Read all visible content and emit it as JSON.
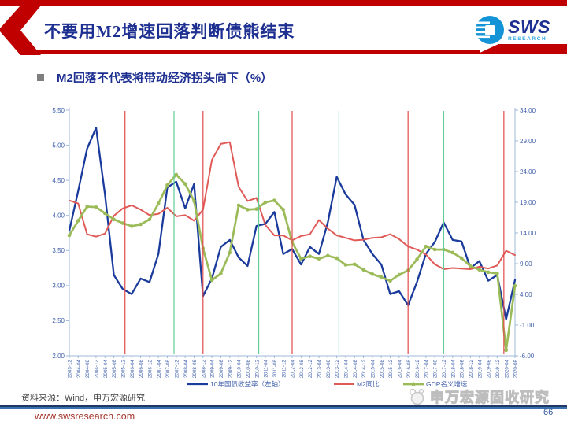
{
  "header": {
    "title": "不要用M2增速回落判断债熊结束",
    "logo": {
      "name": "SWS",
      "sub": "RESEARCH"
    }
  },
  "subtitle": "M2回落不代表将带动经济拐头向下（%）",
  "colors": {
    "header_red": "#C00000",
    "title_blue": "#1D2F90",
    "axis_text": "#3E5EA9",
    "axis_line": "#9DB8D9",
    "line_blue": "#1A3B9C",
    "line_red": "#E05A58",
    "line_green": "#9BBB59",
    "vertical_red": "#E14B4B",
    "vertical_green": "#63CD96"
  },
  "chart_data": {
    "type": "line",
    "x_labels": [
      "2003-12",
      "2004-04",
      "2004-08",
      "2004-12",
      "2005-04",
      "2005-08",
      "2005-12",
      "2006-04",
      "2006-08",
      "2006-12",
      "2007-04",
      "2007-08",
      "2007-12",
      "2008-04",
      "2008-08",
      "2008-12",
      "2009-04",
      "2009-08",
      "2009-12",
      "2010-04",
      "2010-08",
      "2010-12",
      "2011-04",
      "2011-08",
      "2011-12",
      "2012-04",
      "2012-08",
      "2012-12",
      "2013-04",
      "2013-08",
      "2013-12",
      "2014-04",
      "2014-08",
      "2014-12",
      "2015-04",
      "2015-08",
      "2015-12",
      "2016-04",
      "2016-08",
      "2016-12",
      "2017-04",
      "2017-08",
      "2017-12",
      "2018-04",
      "2018-08",
      "2018-12",
      "2019-04",
      "2019-08",
      "2019-12",
      "2020-04",
      "2020-08"
    ],
    "left_axis": {
      "min": 2.0,
      "max": 5.5,
      "ticks": [
        "2.00",
        "2.50",
        "3.00",
        "3.50",
        "4.00",
        "4.50",
        "5.00",
        "5.50"
      ]
    },
    "right_axis": {
      "min": -6.0,
      "max": 34.0,
      "ticks": [
        "-6.00",
        "-1.00",
        "4.00",
        "9.00",
        "14.00",
        "19.00",
        "24.00",
        "29.00",
        "34.00"
      ]
    },
    "series": [
      {
        "name": "10年国债收益率（左轴）",
        "axis": "left",
        "color": "#1A3B9C",
        "width": 2.3,
        "marker": false,
        "values": [
          3.78,
          4.35,
          4.95,
          5.25,
          4.3,
          3.15,
          2.95,
          2.88,
          3.1,
          3.05,
          3.45,
          4.4,
          4.48,
          4.1,
          4.45,
          2.85,
          3.1,
          3.55,
          3.65,
          3.4,
          3.28,
          3.85,
          3.88,
          4.05,
          3.45,
          3.52,
          3.3,
          3.55,
          3.45,
          3.9,
          4.55,
          4.3,
          4.15,
          3.65,
          3.45,
          3.3,
          2.88,
          2.92,
          2.72,
          3.05,
          3.45,
          3.62,
          3.9,
          3.65,
          3.63,
          3.25,
          3.35,
          3.07,
          3.15,
          2.52,
          3.08
        ]
      },
      {
        "name": "M2同比",
        "axis": "right",
        "color": "#E05A58",
        "width": 2.0,
        "marker": false,
        "values": [
          19.3,
          18.8,
          13.8,
          13.4,
          13.9,
          16.8,
          18.0,
          18.5,
          17.8,
          16.9,
          17.1,
          18.1,
          16.7,
          16.9,
          16.0,
          17.8,
          25.9,
          28.5,
          28.8,
          21.5,
          19.2,
          19.7,
          15.3,
          13.6,
          13.6,
          12.8,
          13.5,
          13.8,
          16.1,
          14.7,
          13.6,
          13.2,
          12.8,
          12.9,
          13.2,
          13.3,
          13.8,
          13.0,
          11.8,
          11.3,
          10.5,
          8.9,
          8.1,
          8.3,
          8.2,
          8.1,
          8.5,
          8.2,
          8.7,
          11.1,
          10.4
        ]
      },
      {
        "name": "GDP名义增速",
        "axis": "right",
        "color": "#9BBB59",
        "width": 2.7,
        "marker": true,
        "values": [
          13.6,
          16.0,
          18.3,
          18.2,
          17.2,
          16.2,
          15.6,
          15.1,
          15.4,
          16.2,
          18.8,
          21.8,
          23.5,
          22.0,
          19.2,
          11.5,
          6.3,
          7.4,
          10.8,
          18.5,
          17.8,
          17.9,
          19.0,
          19.3,
          17.8,
          12.5,
          9.8,
          10.2,
          9.8,
          10.3,
          9.9,
          8.8,
          8.9,
          8.0,
          7.3,
          6.8,
          6.2,
          7.2,
          7.9,
          9.7,
          11.8,
          11.3,
          11.3,
          10.8,
          9.9,
          8.6,
          8.0,
          7.6,
          7.4,
          -5.1,
          5.4
        ]
      }
    ],
    "event_lines": {
      "red_color": "#E14B4B",
      "red_dates": [
        "2006-01",
        "2008-12",
        "2012-04",
        "2016-08",
        "2020-03"
      ],
      "green_color": "#63CD96",
      "green_dates": [
        "2007-11",
        "2011-01",
        "2014-01",
        "2017-12"
      ]
    },
    "legend_position": "bottom-center",
    "grid": false
  },
  "footer": {
    "source": "资料来源：Wind，申万宏源研究",
    "url": "www.swsresearch.com",
    "watermark": "申万宏源固收研究",
    "page": "66"
  }
}
